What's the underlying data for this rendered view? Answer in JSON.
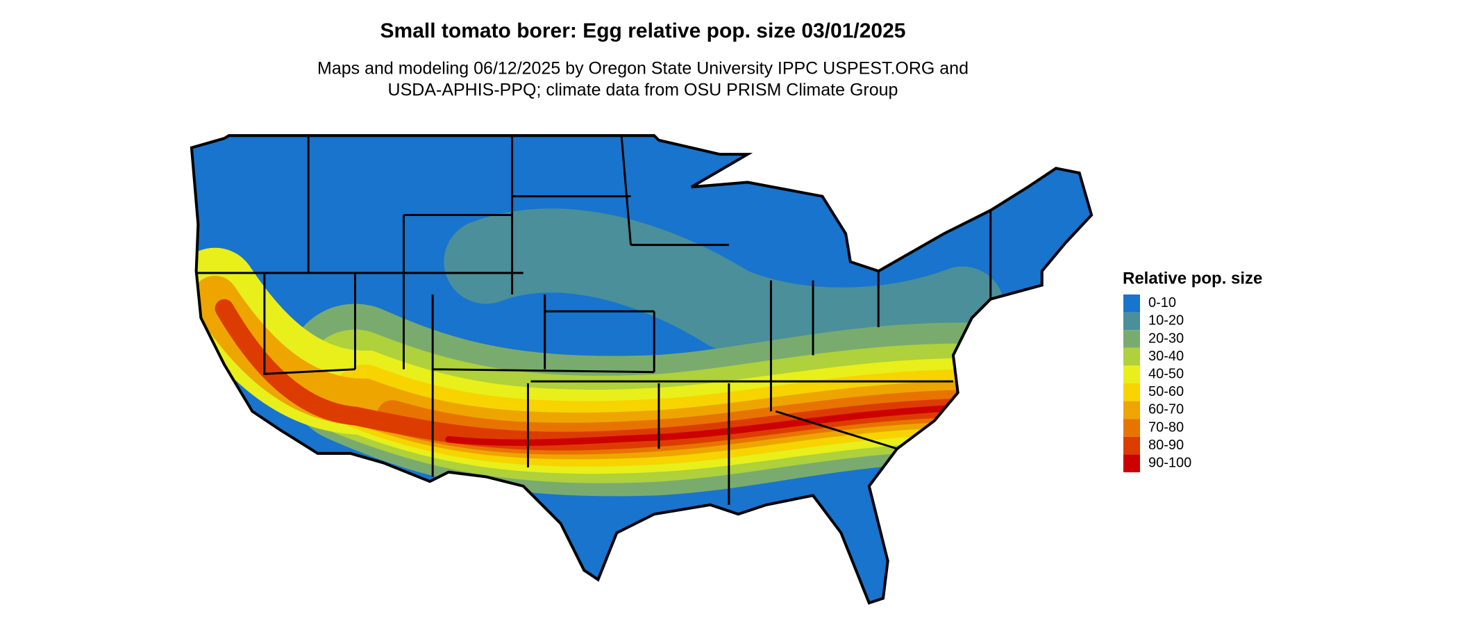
{
  "map": {
    "title": "Small tomato borer: Egg relative pop. size 03/01/2025",
    "subtitle": [
      "Maps and modeling 06/12/2025 by Oregon State University IPPC USPEST.ORG and",
      "USDA-APHIS-PPQ; climate data from OSU PRISM Climate Group"
    ],
    "legend": {
      "title": "Relative pop. size",
      "items": [
        {
          "label": "0-10",
          "color": "#1874cd"
        },
        {
          "label": "10-20",
          "color": "#4a8f9a"
        },
        {
          "label": "20-30",
          "color": "#7aab6e"
        },
        {
          "label": "30-40",
          "color": "#aed13c"
        },
        {
          "label": "40-50",
          "color": "#e8ef1a"
        },
        {
          "label": "50-60",
          "color": "#f7d400"
        },
        {
          "label": "60-70",
          "color": "#eea500"
        },
        {
          "label": "70-80",
          "color": "#e87400"
        },
        {
          "label": "80-90",
          "color": "#dd3c00"
        },
        {
          "label": "90-100",
          "color": "#cc0000"
        }
      ]
    }
  }
}
